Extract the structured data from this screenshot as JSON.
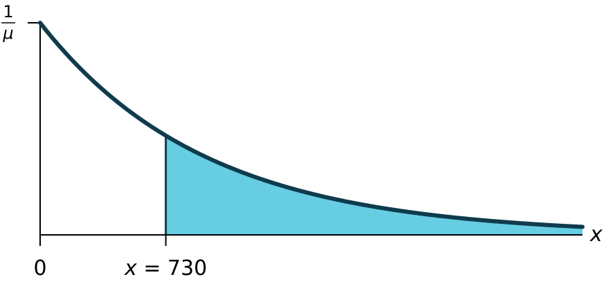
{
  "chart_data": {
    "type": "area",
    "curve": "exponential-density",
    "y_tick_label": {
      "numerator": "1",
      "denominator": "μ"
    },
    "x_axis_label": "x",
    "x_ticks": [
      {
        "value": 0,
        "label": "0"
      },
      {
        "value": 730,
        "label": "x = 730"
      }
    ],
    "shaded_region": {
      "from": 730,
      "to": "end",
      "side": "right"
    },
    "x_end": 3150,
    "decay_rate_per_unit": 0.00104,
    "colors": {
      "curve": "#0f3b4d",
      "fill": "#66cde3",
      "axis": "#000000"
    }
  }
}
